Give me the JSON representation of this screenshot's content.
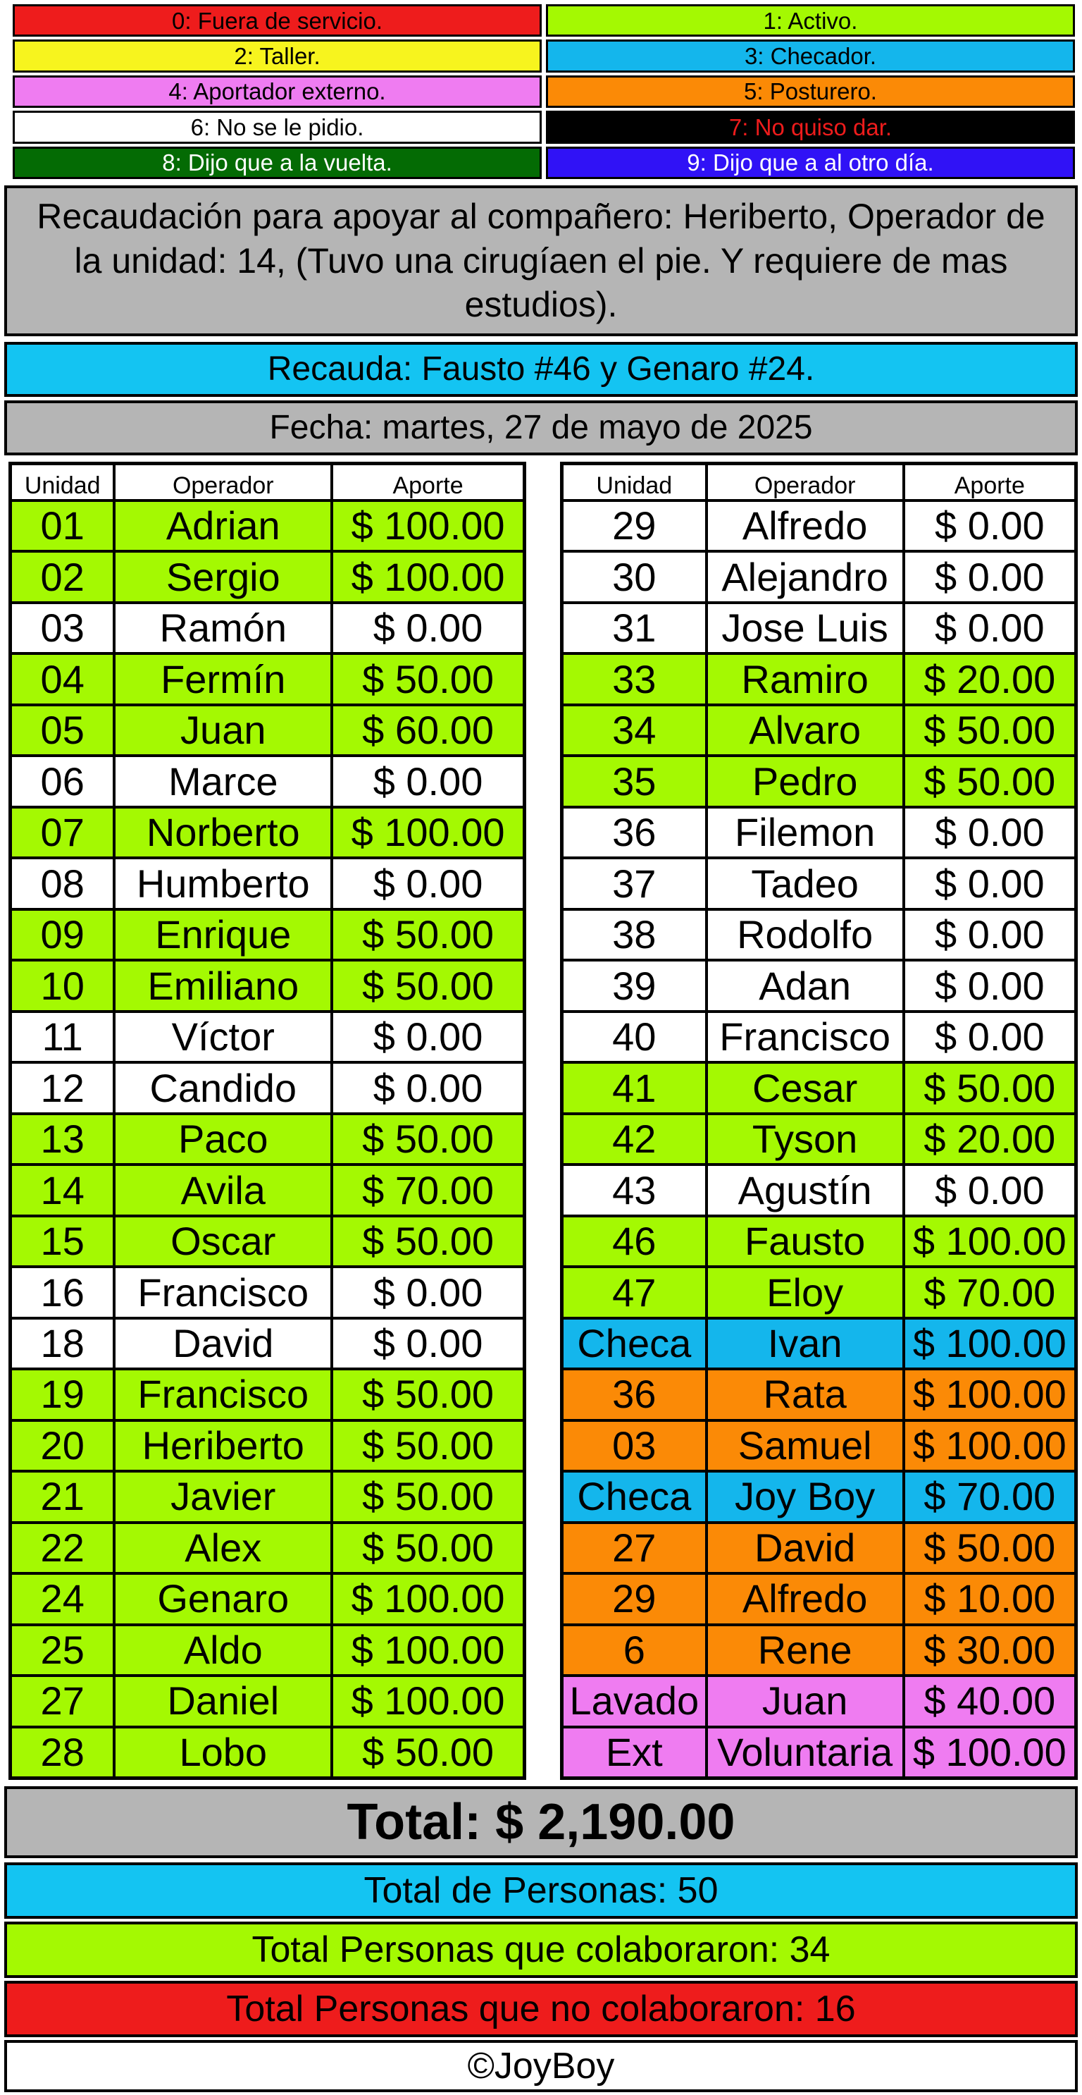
{
  "legend": [
    {
      "label": "0: Fuera de servicio.",
      "bg": "#ee1c1c",
      "fg": "#000000"
    },
    {
      "label": "1: Activo.",
      "bg": "#a4f902",
      "fg": "#000000"
    },
    {
      "label": "2: Taller.",
      "bg": "#f7f41e",
      "fg": "#000000"
    },
    {
      "label": "3: Checador.",
      "bg": "#14b6ec",
      "fg": "#000000"
    },
    {
      "label": "4: Aportador externo.",
      "bg": "#ef7cf1",
      "fg": "#000000"
    },
    {
      "label": "5: Posturero.",
      "bg": "#fb8a06",
      "fg": "#000000"
    },
    {
      "label": "6: No se le pidio.",
      "bg": "#ffffff",
      "fg": "#000000"
    },
    {
      "label": "7: No quiso dar.",
      "bg": "#000000",
      "fg": "#ee1c1c"
    },
    {
      "label": "8: Dijo que a la vuelta.",
      "bg": "#046b04",
      "fg": "#ffffff"
    },
    {
      "label": "9: Dijo que a al otro día.",
      "bg": "#3012f6",
      "fg": "#ffffff"
    }
  ],
  "title": "Recaudación para apoyar al compañero: Heriberto, Operador de la unidad: 14, (Tuvo una cirugíaen el pie. Y requiere de mas estudios).",
  "recauda": "Recauda: Fausto #46 y Genaro #24.",
  "fecha": "Fecha: martes, 27 de mayo de 2025",
  "headers": {
    "unidad": "Unidad",
    "operador": "Operador",
    "aporte": "Aporte"
  },
  "left_rows": [
    {
      "unidad": "01",
      "operador": "Adrian",
      "aporte": "$ 100.00",
      "status": 1
    },
    {
      "unidad": "02",
      "operador": "Sergio",
      "aporte": "$ 100.00",
      "status": 1
    },
    {
      "unidad": "03",
      "operador": "Ramón",
      "aporte": "$ 0.00",
      "status": 6
    },
    {
      "unidad": "04",
      "operador": "Fermín",
      "aporte": "$ 50.00",
      "status": 1
    },
    {
      "unidad": "05",
      "operador": "Juan",
      "aporte": "$ 60.00",
      "status": 1
    },
    {
      "unidad": "06",
      "operador": "Marce",
      "aporte": "$ 0.00",
      "status": 6
    },
    {
      "unidad": "07",
      "operador": "Norberto",
      "aporte": "$ 100.00",
      "status": 1
    },
    {
      "unidad": "08",
      "operador": "Humberto",
      "aporte": "$ 0.00",
      "status": 6
    },
    {
      "unidad": "09",
      "operador": "Enrique",
      "aporte": "$ 50.00",
      "status": 1
    },
    {
      "unidad": "10",
      "operador": "Emiliano",
      "aporte": "$ 50.00",
      "status": 1
    },
    {
      "unidad": "11",
      "operador": "Víctor",
      "aporte": "$ 0.00",
      "status": 6
    },
    {
      "unidad": "12",
      "operador": "Candido",
      "aporte": "$ 0.00",
      "status": 6
    },
    {
      "unidad": "13",
      "operador": "Paco",
      "aporte": "$ 50.00",
      "status": 1
    },
    {
      "unidad": "14",
      "operador": "Avila",
      "aporte": "$ 70.00",
      "status": 1
    },
    {
      "unidad": "15",
      "operador": "Oscar",
      "aporte": "$ 50.00",
      "status": 1
    },
    {
      "unidad": "16",
      "operador": "Francisco",
      "aporte": "$ 0.00",
      "status": 6
    },
    {
      "unidad": "18",
      "operador": "David",
      "aporte": "$ 0.00",
      "status": 6
    },
    {
      "unidad": "19",
      "operador": "Francisco",
      "aporte": "$ 50.00",
      "status": 1
    },
    {
      "unidad": "20",
      "operador": "Heriberto",
      "aporte": "$ 50.00",
      "status": 1
    },
    {
      "unidad": "21",
      "operador": "Javier",
      "aporte": "$ 50.00",
      "status": 1
    },
    {
      "unidad": "22",
      "operador": "Alex",
      "aporte": "$ 50.00",
      "status": 1
    },
    {
      "unidad": "24",
      "operador": "Genaro",
      "aporte": "$ 100.00",
      "status": 1
    },
    {
      "unidad": "25",
      "operador": "Aldo",
      "aporte": "$ 100.00",
      "status": 1
    },
    {
      "unidad": "27",
      "operador": "Daniel",
      "aporte": "$ 100.00",
      "status": 1
    },
    {
      "unidad": "28",
      "operador": "Lobo",
      "aporte": "$ 50.00",
      "status": 1
    }
  ],
  "right_rows": [
    {
      "unidad": "29",
      "operador": "Alfredo",
      "aporte": "$ 0.00",
      "status": 6
    },
    {
      "unidad": "30",
      "operador": "Alejandro",
      "aporte": "$ 0.00",
      "status": 6
    },
    {
      "unidad": "31",
      "operador": "Jose Luis",
      "aporte": "$ 0.00",
      "status": 6
    },
    {
      "unidad": "33",
      "operador": "Ramiro",
      "aporte": "$ 20.00",
      "status": 1
    },
    {
      "unidad": "34",
      "operador": "Alvaro",
      "aporte": "$ 50.00",
      "status": 1
    },
    {
      "unidad": "35",
      "operador": "Pedro",
      "aporte": "$ 50.00",
      "status": 1
    },
    {
      "unidad": "36",
      "operador": "Filemon",
      "aporte": "$ 0.00",
      "status": 6
    },
    {
      "unidad": "37",
      "operador": "Tadeo",
      "aporte": "$ 0.00",
      "status": 6
    },
    {
      "unidad": "38",
      "operador": "Rodolfo",
      "aporte": "$ 0.00",
      "status": 6
    },
    {
      "unidad": "39",
      "operador": "Adan",
      "aporte": "$ 0.00",
      "status": 6
    },
    {
      "unidad": "40",
      "operador": "Francisco",
      "aporte": "$ 0.00",
      "status": 6
    },
    {
      "unidad": "41",
      "operador": "Cesar",
      "aporte": "$ 50.00",
      "status": 1
    },
    {
      "unidad": "42",
      "operador": "Tyson",
      "aporte": "$ 20.00",
      "status": 1
    },
    {
      "unidad": "43",
      "operador": "Agustín",
      "aporte": "$ 0.00",
      "status": 6
    },
    {
      "unidad": "46",
      "operador": "Fausto",
      "aporte": "$ 100.00",
      "status": 1
    },
    {
      "unidad": "47",
      "operador": "Eloy",
      "aporte": "$ 70.00",
      "status": 1
    },
    {
      "unidad": "Checa",
      "operador": "Ivan",
      "aporte": "$ 100.00",
      "status": 3
    },
    {
      "unidad": "36",
      "operador": "Rata",
      "aporte": "$ 100.00",
      "status": 5
    },
    {
      "unidad": "03",
      "operador": "Samuel",
      "aporte": "$ 100.00",
      "status": 5
    },
    {
      "unidad": "Checa",
      "operador": "Joy Boy",
      "aporte": "$ 70.00",
      "status": 3
    },
    {
      "unidad": "27",
      "operador": "David",
      "aporte": "$ 50.00",
      "status": 5
    },
    {
      "unidad": "29",
      "operador": "Alfredo",
      "aporte": "$ 10.00",
      "status": 5
    },
    {
      "unidad": "6",
      "operador": "Rene",
      "aporte": "$ 30.00",
      "status": 5
    },
    {
      "unidad": "Lavado",
      "operador": "Juan",
      "aporte": "$ 40.00",
      "status": 4
    },
    {
      "unidad": "Ext",
      "operador": "Voluntaria",
      "aporte": "$ 100.00",
      "status": 4
    }
  ],
  "total": "Total: $ 2,190.00",
  "total_personas": "Total de Personas: 50",
  "colaboraron": "Total Personas que colaboraron: 34",
  "no_colaboraron": "Total Personas que no colaboraron: 16",
  "credit": "©JoyBoy"
}
